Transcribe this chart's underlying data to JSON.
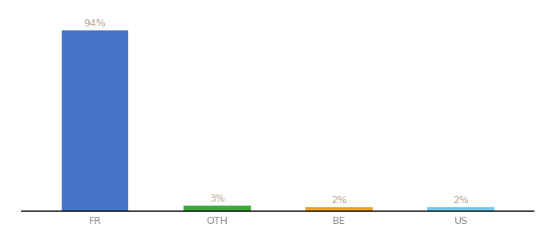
{
  "categories": [
    "FR",
    "OTH",
    "BE",
    "US"
  ],
  "values": [
    94,
    3,
    2,
    2
  ],
  "bar_colors": [
    "#4472c4",
    "#3daa3d",
    "#f0a020",
    "#70c8f0"
  ],
  "labels": [
    "94%",
    "3%",
    "2%",
    "2%"
  ],
  "label_color": "#b0a090",
  "background_color": "#ffffff",
  "ylim": [
    0,
    100
  ],
  "bar_width": 0.55,
  "label_fontsize": 9,
  "tick_fontsize": 9,
  "tick_color": "#888888",
  "axis_line_color": "#111111",
  "xlim": [
    -0.6,
    3.6
  ]
}
